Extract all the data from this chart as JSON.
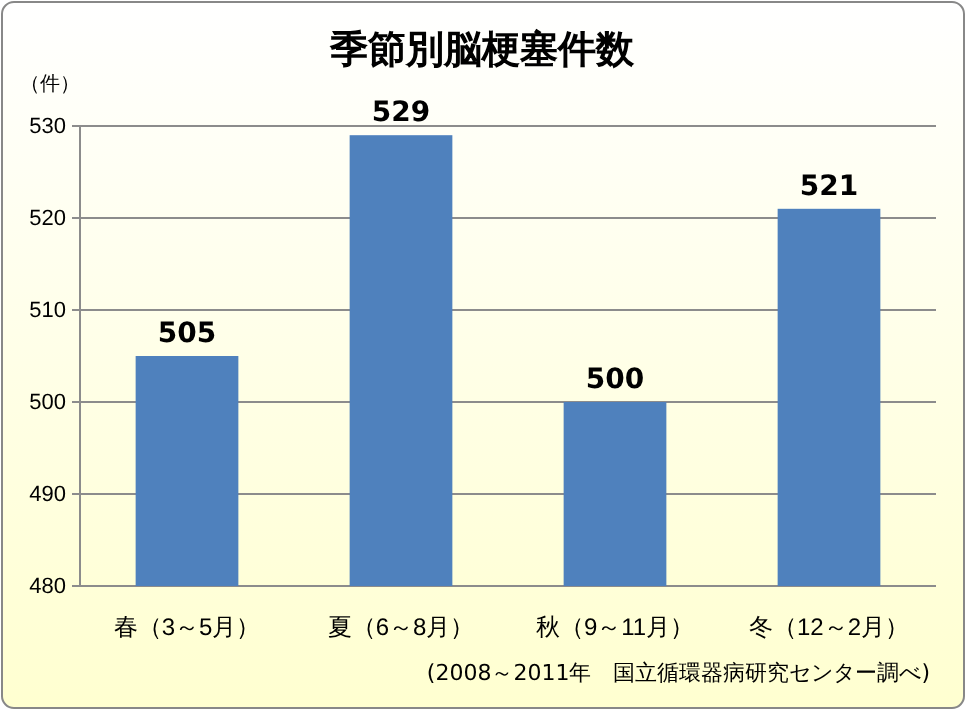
{
  "chart_data": {
    "type": "bar",
    "title": "季節別脳梗塞件数",
    "ylabel": "（件）",
    "categories": [
      "春（3～5月）",
      "夏（6～8月）",
      "秋（9～11月）",
      "冬（12～2月）"
    ],
    "values": [
      505,
      529,
      500,
      521
    ],
    "color": "#4f81bd",
    "ylim": [
      480,
      530
    ],
    "yticks": [
      480,
      490,
      500,
      510,
      520,
      530
    ],
    "grid": "y",
    "data_labels": true,
    "annotations": [
      "(2008～2011年　国立循環器病研究センター調べ)"
    ]
  }
}
